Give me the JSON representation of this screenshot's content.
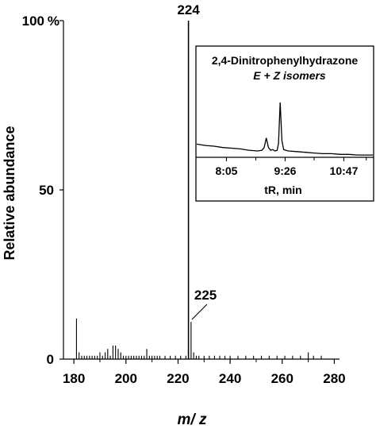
{
  "chart_data": [
    {
      "type": "bar",
      "title": "",
      "xlabel": "m/ z",
      "ylabel": "Relative  abundance",
      "xlim": [
        176,
        282
      ],
      "ylim": [
        0,
        100
      ],
      "x_ticks": [
        "180",
        "200",
        "220",
        "240",
        "260",
        "280"
      ],
      "y_ticks": [
        "0",
        "50",
        "100"
      ],
      "y_unit": "%",
      "grid": false,
      "series": [
        {
          "x": [
            181,
            182,
            183,
            184,
            185,
            186,
            187,
            188,
            189,
            190,
            191,
            192,
            193,
            194,
            195,
            196,
            197,
            198,
            199,
            200,
            201,
            202,
            203,
            204,
            205,
            206,
            207,
            208,
            209,
            210,
            211,
            212,
            213,
            215,
            217,
            219,
            221,
            223,
            224,
            225,
            226,
            227,
            228,
            230,
            232,
            234,
            236,
            238,
            240,
            243,
            246,
            249,
            252,
            255,
            258,
            261,
            264,
            267,
            270,
            272,
            275
          ],
          "values": [
            12,
            2,
            1,
            1,
            1,
            1,
            1,
            1,
            1,
            2,
            1,
            2,
            3,
            1,
            4,
            4,
            3,
            2,
            1,
            1,
            1,
            1,
            1,
            1,
            1,
            1,
            1,
            3,
            1,
            1,
            1,
            1,
            1,
            1,
            1,
            1,
            1,
            1,
            100,
            11,
            2,
            1,
            1,
            1,
            1,
            1,
            1,
            1,
            1,
            1,
            1,
            1,
            1,
            1,
            1,
            1,
            1,
            1,
            2,
            1,
            1
          ]
        }
      ],
      "annotations": [
        {
          "text": "224",
          "x": 224,
          "y": 100
        },
        {
          "text": "225",
          "x": 225,
          "y": 11
        }
      ]
    },
    {
      "type": "line",
      "title": "2,4-Dinitrophenylhydrazone",
      "subtitle": "E + Z isomers",
      "xlabel": "tR,  min",
      "x_ticks": [
        "8:05",
        "9:26",
        "10:47"
      ],
      "x_tick_minutes": [
        8.0833,
        9.4333,
        10.7833
      ],
      "xlim": [
        7.4,
        11.45
      ],
      "ylim": [
        0,
        100
      ],
      "series": [
        {
          "x": [
            7.4,
            7.6,
            7.8,
            8.0,
            8.2,
            8.4,
            8.6,
            8.8,
            8.9,
            8.95,
            9.0,
            9.05,
            9.1,
            9.15,
            9.2,
            9.25,
            9.28,
            9.32,
            9.36,
            9.4,
            9.5,
            9.7,
            9.9,
            10.1,
            10.3,
            10.5,
            10.7,
            10.9,
            11.1,
            11.3,
            11.45
          ],
          "values": [
            17,
            15,
            14,
            12,
            11,
            10,
            8,
            7,
            8,
            12,
            26,
            12,
            8,
            9,
            7,
            8,
            18,
            78,
            22,
            9,
            7,
            6,
            5,
            4,
            3,
            3,
            2,
            2,
            1,
            1,
            1
          ]
        }
      ]
    }
  ]
}
